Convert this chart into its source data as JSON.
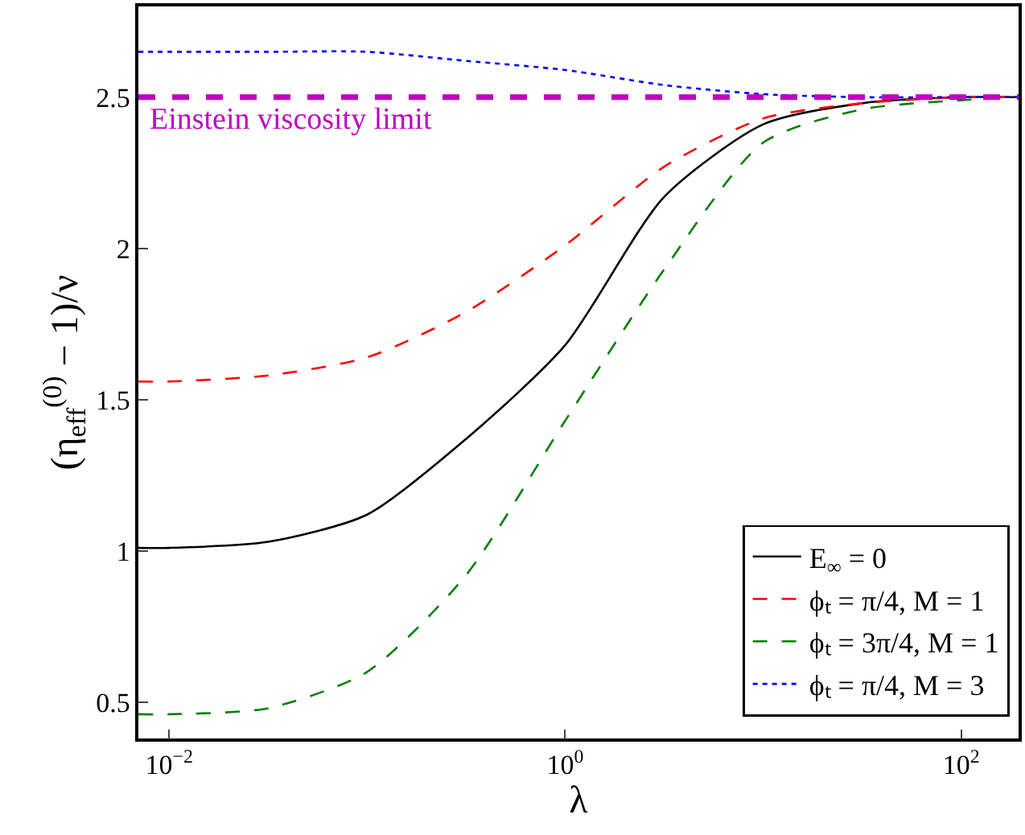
{
  "chart_data": {
    "type": "line",
    "xlabel": "λ",
    "ylabel": "(η$_{eff}$$^{(0)}$ − 1)/ν",
    "log": "x",
    "xlim": [
      0.007,
      195
    ],
    "ylim": [
      0.38,
      2.8
    ],
    "xticks": [
      {
        "value": 0.01,
        "label": "10$^{−2}$"
      },
      {
        "value": 1,
        "label": "10$^{0}$"
      },
      {
        "value": 100,
        "label": "10$^{2}$"
      }
    ],
    "yticks": [
      0.5,
      1,
      1.5,
      2,
      2.5
    ],
    "x": [
      0.007,
      0.01,
      0.0316,
      0.1,
      0.316,
      1,
      3.16,
      10,
      31.6,
      100,
      195
    ],
    "series": [
      {
        "name": "E$_{∞}$ = 0",
        "color": "#000000",
        "line_style": "solid",
        "values": [
          1.01,
          1.01,
          1.03,
          1.12,
          1.37,
          1.68,
          2.17,
          2.41,
          2.48,
          2.5,
          2.5
        ]
      },
      {
        "name": "ϕₜ = π/4, M = 1",
        "color": "#ff0000",
        "line_style": "dashed",
        "values": [
          1.56,
          1.56,
          1.58,
          1.64,
          1.79,
          2.01,
          2.27,
          2.43,
          2.48,
          2.5,
          2.5
        ]
      },
      {
        "name": "ϕₜ = 3π/4, M = 1",
        "color": "#008000",
        "line_style": "dashed",
        "values": [
          0.46,
          0.46,
          0.48,
          0.6,
          0.92,
          1.43,
          1.93,
          2.35,
          2.46,
          2.49,
          2.5
        ]
      },
      {
        "name": "ϕₜ = π/4, M = 3",
        "color": "#0000ff",
        "line_style": "dotted",
        "values": [
          2.65,
          2.65,
          2.65,
          2.65,
          2.62,
          2.59,
          2.54,
          2.51,
          2.5,
          2.5,
          2.5
        ]
      }
    ],
    "ref_lines": [
      {
        "axis": "y",
        "value": 2.5,
        "label": "Einstein viscosity limit",
        "color": "#bf00bf",
        "line_style": "dashed"
      }
    ],
    "legend": "bottom right",
    "marker": "none"
  }
}
